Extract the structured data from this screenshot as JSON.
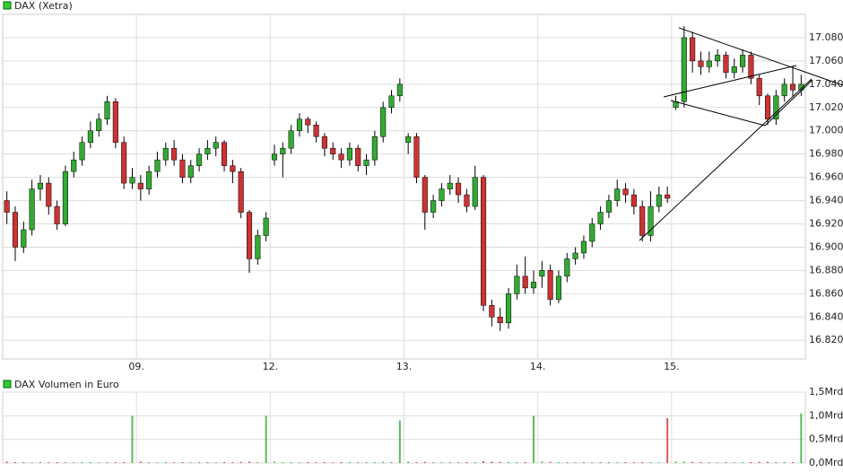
{
  "chart_data": [
    {
      "type": "candlestick",
      "title": "DAX (Xetra)",
      "legend_color": "#3c3",
      "up_color": "#33aa33",
      "down_color": "#cc3333",
      "ylim": [
        16804,
        17100
      ],
      "yticks": [
        {
          "value": 16820,
          "label": "16.820"
        },
        {
          "value": 16840,
          "label": "16.840"
        },
        {
          "value": 16860,
          "label": "16.860"
        },
        {
          "value": 16880,
          "label": "16.880"
        },
        {
          "value": 16900,
          "label": "16.900"
        },
        {
          "value": 16920,
          "label": "16.920"
        },
        {
          "value": 16940,
          "label": "16.940"
        },
        {
          "value": 16960,
          "label": "16.960"
        },
        {
          "value": 16980,
          "label": "16.980"
        },
        {
          "value": 17000,
          "label": "17.000"
        },
        {
          "value": 17020,
          "label": "17.020"
        },
        {
          "value": 17040,
          "label": "17.040"
        },
        {
          "value": 17060,
          "label": "17.060"
        },
        {
          "value": 17080,
          "label": "17.080"
        }
      ],
      "xlim": [
        -0.5,
        95.5
      ],
      "xticks": [
        {
          "value": 15.5,
          "label": "09."
        },
        {
          "value": 31.5,
          "label": "12."
        },
        {
          "value": 47.5,
          "label": "13."
        },
        {
          "value": 63.5,
          "label": "14."
        },
        {
          "value": 79.5,
          "label": "15."
        }
      ],
      "open": [
        16940,
        16930,
        16900,
        16915,
        16950,
        16955,
        16935,
        16920,
        16965,
        16975,
        16990,
        17000,
        17010,
        17025,
        16990,
        16955,
        16955,
        16950,
        16965,
        16975,
        16985,
        16975,
        16960,
        16970,
        16980,
        16985,
        16990,
        16970,
        16965,
        16930,
        16890,
        16910,
        16975,
        16980,
        16985,
        17000,
        17010,
        17005,
        16995,
        16985,
        16980,
        16975,
        16985,
        16970,
        16975,
        16995,
        17020,
        17030,
        16990,
        16995,
        16960,
        16930,
        16940,
        16950,
        16955,
        16945,
        16935,
        16960,
        16850,
        16840,
        16835,
        16860,
        16875,
        16865,
        16875,
        16880,
        16855,
        16875,
        16890,
        16895,
        16905,
        16920,
        16930,
        16940,
        16950,
        16945,
        16935,
        16910,
        16935,
        16945,
        17020,
        17025,
        17080,
        17060,
        17055,
        17060,
        17065,
        17050,
        17055,
        17065,
        17045,
        17030,
        17010,
        17030,
        17040,
        17035
      ],
      "high": [
        16948,
        16935,
        16922,
        16958,
        16962,
        16960,
        16940,
        16970,
        16982,
        16995,
        17008,
        17015,
        17030,
        17028,
        16995,
        16968,
        16962,
        16970,
        16982,
        16990,
        16992,
        16980,
        16975,
        16985,
        16992,
        16995,
        16992,
        16975,
        16968,
        16932,
        16915,
        16930,
        16988,
        16990,
        17005,
        17015,
        17012,
        17008,
        16998,
        16990,
        16985,
        16990,
        16988,
        16980,
        17000,
        17025,
        17035,
        17045,
        16998,
        16998,
        16962,
        16945,
        16955,
        16962,
        16960,
        16950,
        16970,
        16962,
        16855,
        16848,
        16865,
        16885,
        16892,
        16880,
        16888,
        16885,
        16880,
        16895,
        16900,
        16910,
        16925,
        16935,
        16945,
        16958,
        16955,
        16950,
        16940,
        16948,
        16952,
        16952,
        17030,
        17090,
        17085,
        17068,
        17068,
        17070,
        17068,
        17062,
        17070,
        17068,
        17048,
        17032,
        17035,
        17045,
        17055,
        17048
      ],
      "low": [
        16920,
        16888,
        16895,
        16910,
        16940,
        16928,
        16915,
        16918,
        16960,
        16970,
        16985,
        16995,
        17005,
        16985,
        16950,
        16950,
        16940,
        16945,
        16960,
        16970,
        16970,
        16955,
        16955,
        16965,
        16975,
        16978,
        16965,
        16955,
        16925,
        16878,
        16885,
        16905,
        16970,
        16960,
        16980,
        16995,
        16998,
        16990,
        16978,
        16975,
        16968,
        16970,
        16965,
        16962,
        16970,
        16990,
        17015,
        17025,
        16980,
        16955,
        16915,
        16925,
        16935,
        16945,
        16938,
        16930,
        16932,
        16845,
        16832,
        16828,
        16830,
        16855,
        16860,
        16860,
        16865,
        16850,
        16852,
        16870,
        16885,
        16890,
        16900,
        16915,
        16925,
        16935,
        16938,
        16928,
        16905,
        16905,
        16930,
        16938,
        17018,
        17020,
        17050,
        17048,
        17050,
        17055,
        17045,
        17045,
        17050,
        17040,
        17022,
        17005,
        17005,
        17025,
        17030,
        17030
      ],
      "close": [
        16930,
        16900,
        16915,
        16950,
        16955,
        16935,
        16920,
        16965,
        16975,
        16990,
        17000,
        17010,
        17025,
        16990,
        16955,
        16960,
        16950,
        16965,
        16975,
        16985,
        16975,
        16960,
        16970,
        16980,
        16985,
        16990,
        16970,
        16965,
        16930,
        16890,
        16910,
        16925,
        16980,
        16985,
        17000,
        17010,
        17005,
        16995,
        16985,
        16980,
        16975,
        16985,
        16970,
        16975,
        16995,
        17020,
        17030,
        17040,
        16995,
        16960,
        16930,
        16940,
        16950,
        16955,
        16945,
        16935,
        16960,
        16850,
        16840,
        16835,
        16860,
        16875,
        16865,
        16870,
        16880,
        16855,
        16875,
        16890,
        16895,
        16905,
        16920,
        16930,
        16940,
        16950,
        16945,
        16935,
        16910,
        16935,
        16945,
        16942,
        17025,
        17080,
        17060,
        17055,
        17060,
        17065,
        17050,
        17055,
        17065,
        17045,
        17030,
        17010,
        17030,
        17040,
        17035,
        17040
      ]
    },
    {
      "type": "volume",
      "title": "DAX Volumen in Euro",
      "legend_color": "#3c3",
      "ylim": [
        0,
        1.5
      ],
      "yticks": [
        {
          "value": 0,
          "label": "0,0Mrd"
        },
        {
          "value": 0.5,
          "label": "0,5Mrd"
        },
        {
          "value": 1,
          "label": "1,0Mrd"
        },
        {
          "value": 1.5,
          "label": "1,5Mrd"
        }
      ],
      "values": [
        0.03,
        0.02,
        0.02,
        0.015,
        0.02,
        0.015,
        0.02,
        0.02,
        0.015,
        0.02,
        0.02,
        0.015,
        0.02,
        0.015,
        0.02,
        1.0,
        0.03,
        0.02,
        0.015,
        0.02,
        0.015,
        0.02,
        0.015,
        0.02,
        0.02,
        0.015,
        0.02,
        0.02,
        0.025,
        0.03,
        0.02,
        1.0,
        0.03,
        0.02,
        0.02,
        0.015,
        0.02,
        0.015,
        0.02,
        0.015,
        0.02,
        0.02,
        0.015,
        0.02,
        0.02,
        0.025,
        0.02,
        0.9,
        0.03,
        0.02,
        0.025,
        0.02,
        0.015,
        0.02,
        0.015,
        0.02,
        0.02,
        0.04,
        0.03,
        0.025,
        0.02,
        0.02,
        0.02,
        1.0,
        0.03,
        0.025,
        0.02,
        0.02,
        0.015,
        0.02,
        0.015,
        0.02,
        0.02,
        0.015,
        0.02,
        0.02,
        0.02,
        0.02,
        0.015,
        0.95,
        0.03,
        0.03,
        0.025,
        0.02,
        0.02,
        0.015,
        0.02,
        0.015,
        0.02,
        0.02,
        0.025,
        0.025,
        0.02,
        0.02,
        0.02,
        1.05
      ]
    }
  ]
}
